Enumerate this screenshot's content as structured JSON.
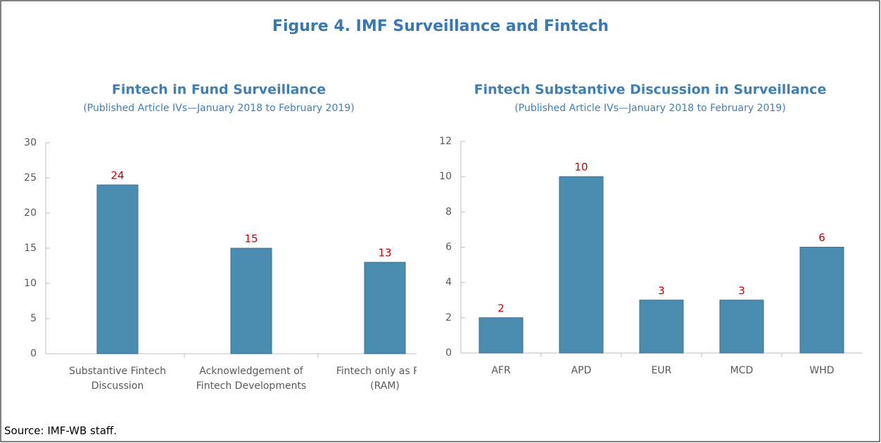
{
  "title": "Figure 4. IMF Surveillance and Fintech",
  "source": "Source: IMF-WB staff.",
  "chart_data": [
    {
      "type": "bar",
      "title": "Fintech in Fund Surveillance",
      "subtitle": "(Published Article IVs—January 2018 to February 2019)",
      "categories": [
        "Substantive Fintech Discussion",
        "Acknowledgement of Fintech Developments",
        "Fintech only as Risk (RAM)"
      ],
      "values": [
        24,
        15,
        13
      ],
      "color": "#4a8db0",
      "ylim": [
        0,
        30
      ],
      "yticks": [
        0,
        5,
        10,
        15,
        20,
        25,
        30
      ],
      "grid": false
    },
    {
      "type": "bar",
      "title": "Fintech Substantive Discussion in Surveillance",
      "subtitle": "(Published Article IVs—January 2018 to February 2019)",
      "categories": [
        "AFR",
        "APD",
        "EUR",
        "MCD",
        "WHD"
      ],
      "values": [
        2,
        10,
        3,
        3,
        6
      ],
      "color": "#4a8db0",
      "ylim": [
        0,
        12
      ],
      "yticks": [
        0,
        2,
        4,
        6,
        8,
        10,
        12
      ],
      "grid": false
    }
  ]
}
